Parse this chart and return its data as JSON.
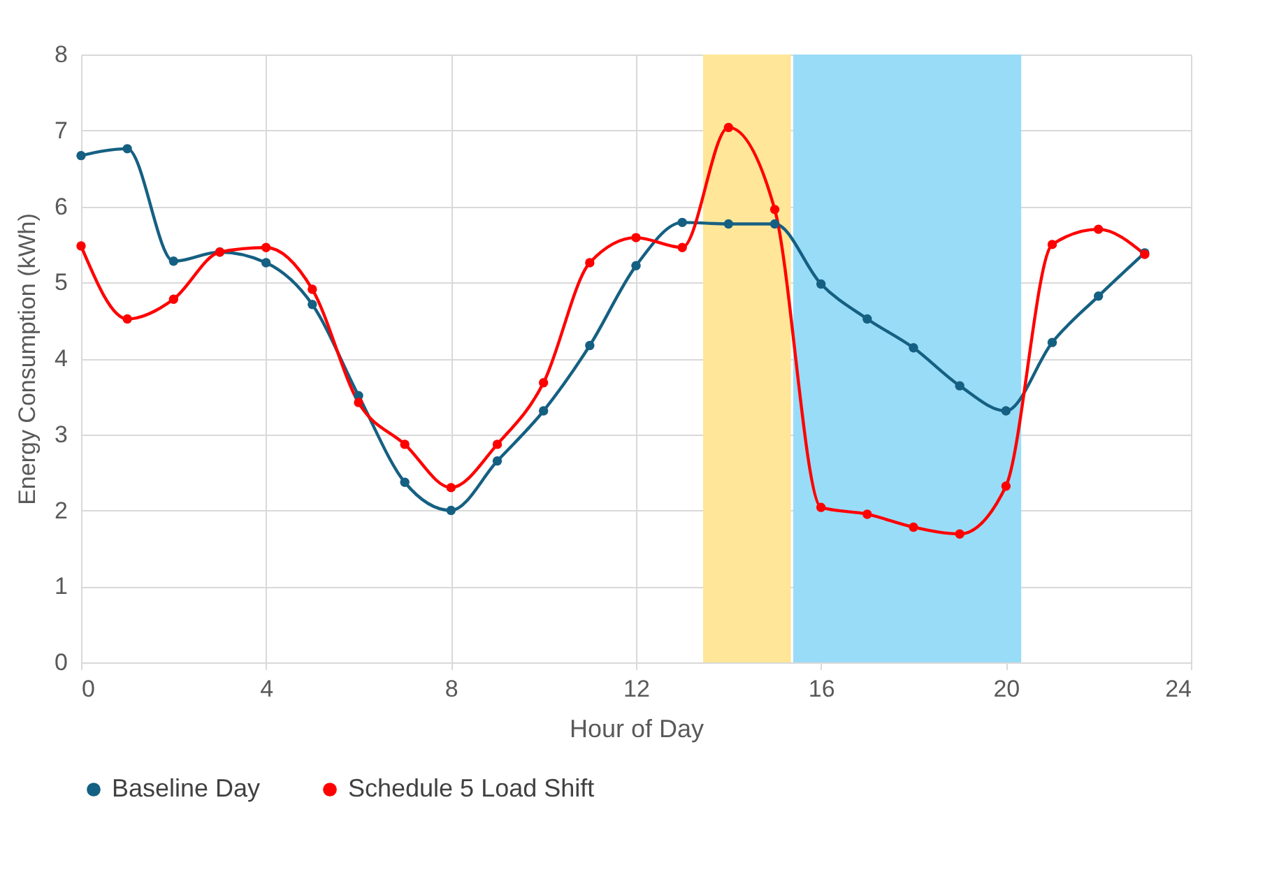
{
  "chart_data": {
    "type": "line",
    "xlabel": "Hour of Day",
    "ylabel": "Energy Consumption (kWh)",
    "x": [
      0,
      1,
      2,
      3,
      4,
      5,
      6,
      7,
      8,
      9,
      10,
      11,
      12,
      13,
      14,
      15,
      16,
      17,
      18,
      19,
      20,
      21,
      22,
      23
    ],
    "series": [
      {
        "name": "Baseline Day",
        "color": "#156082",
        "values": [
          6.67,
          6.76,
          5.28,
          5.4,
          5.26,
          4.71,
          3.51,
          2.37,
          2.0,
          2.65,
          3.31,
          4.17,
          5.22,
          5.79,
          5.77,
          5.77,
          4.98,
          4.52,
          4.14,
          3.64,
          3.31,
          4.21,
          4.82,
          5.39
        ]
      },
      {
        "name": "Schedule 5 Load Shift",
        "color": "#ff0000",
        "values": [
          5.48,
          4.52,
          4.78,
          5.4,
          5.46,
          4.91,
          3.42,
          2.87,
          2.3,
          2.87,
          3.68,
          5.26,
          5.59,
          5.46,
          7.04,
          5.96,
          2.04,
          1.95,
          1.78,
          1.69,
          2.32,
          5.5,
          5.7,
          5.37
        ]
      }
    ],
    "bands": [
      {
        "axis": "x",
        "from": 13.45,
        "to": 15.35,
        "color": "#ffe699"
      },
      {
        "axis": "x",
        "from": 15.4,
        "to": 20.33,
        "color": "#99dcf7"
      }
    ],
    "xlim": [
      0,
      24
    ],
    "xticks": [
      0,
      4,
      8,
      12,
      16,
      20,
      24
    ],
    "ylim": [
      0,
      8
    ],
    "yticks": [
      0,
      1,
      2,
      3,
      4,
      5,
      6,
      7,
      8
    ],
    "grid": true,
    "legend": "bottom",
    "marker": "circle"
  }
}
